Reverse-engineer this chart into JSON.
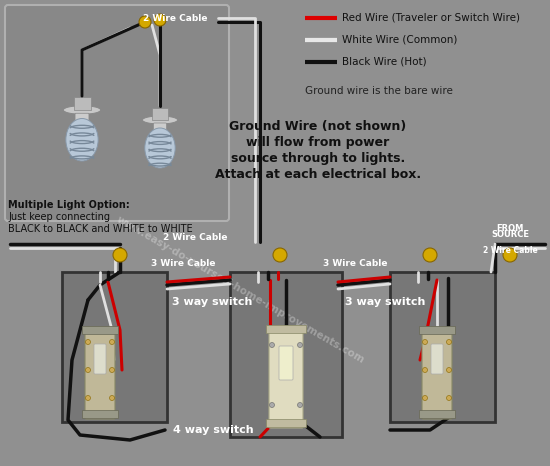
{
  "bg_color": "#909090",
  "legend_items": [
    {
      "label": "Red Wire (Traveler or Switch Wire)",
      "color": "#dd0000",
      "lw": 3
    },
    {
      "label": "White Wire (Common)",
      "color": "#e8e8e8",
      "lw": 3
    },
    {
      "label": "Black Wire (Hot)",
      "color": "#111111",
      "lw": 3
    }
  ],
  "legend_note": "Ground wire is the bare wire",
  "ground_note_line1": "Ground Wire (not shown)",
  "ground_note_line2": "will flow from power",
  "ground_note_line3": "source through to lights.",
  "ground_note_line4": "Attach at each electrical box.",
  "multi_light_line1": "Multiple Light Option:",
  "multi_light_line2": "Just keep connecting",
  "multi_light_line3": "BLACK to BLACK and WHITE to WHITE",
  "cable_2wire_1": "2 Wire Cable",
  "cable_2wire_2": "2 Wire Cable",
  "cable_3wire_1": "3 Wire Cable",
  "cable_3wire_2": "3 Wire Cable",
  "cable_2wire_src": "2 Wire Cable",
  "from_source_1": "FROM",
  "from_source_2": "SOURCE",
  "switch_left_label": "3 way switch",
  "switch_right_label": "3 way switch",
  "switch_center_label": "4 way switch",
  "watermark": "www.easy-do-yourself-home-improvements.com",
  "wire_black": "#111111",
  "wire_white": "#e0e0e0",
  "wire_red": "#cc0000",
  "wire_yellow": "#d4a800",
  "switch_box_bg": "#666666",
  "switch_bg_gray": "#aaaaaa",
  "switch_bg_cream": "#d4d0a0",
  "light_box_bg": "#888888",
  "light_box_border": "#b0b0b0"
}
